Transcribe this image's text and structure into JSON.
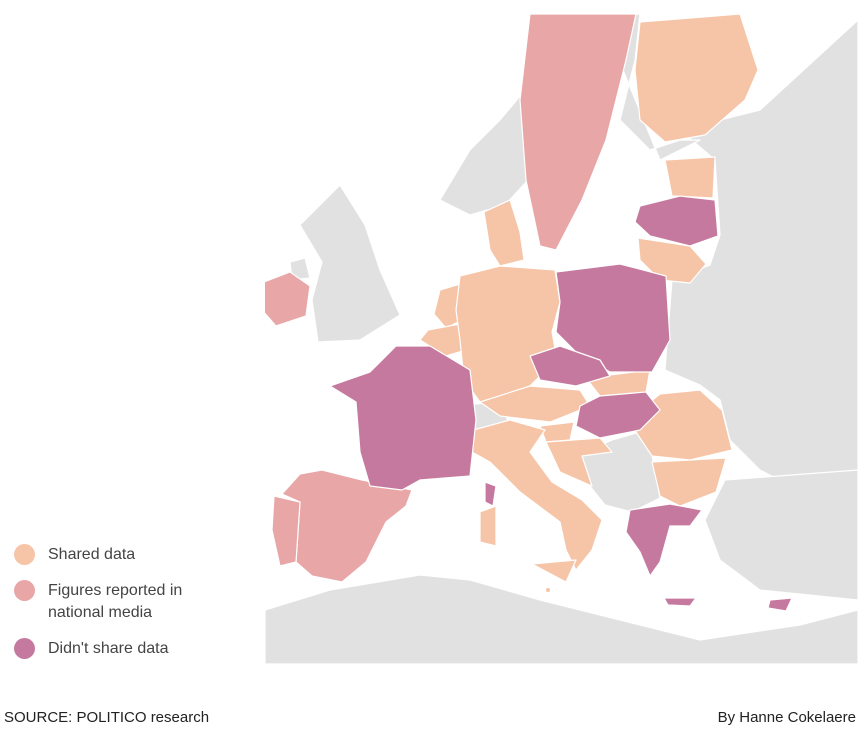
{
  "colors": {
    "shared": "#f6c4a6",
    "figures": "#e8a6a7",
    "didnt": "#c6799e",
    "other_land": "#e1e1e1",
    "sea": "#ffffff",
    "border": "#ffffff"
  },
  "legend": [
    {
      "key": "shared",
      "label": "Shared data"
    },
    {
      "key": "figures",
      "label": "Figures reported in national media"
    },
    {
      "key": "didnt",
      "label": "Didn't share data"
    }
  ],
  "footer": {
    "source": "SOURCE: POLITICO research",
    "byline": "By Hanne Cokelaere"
  }
}
